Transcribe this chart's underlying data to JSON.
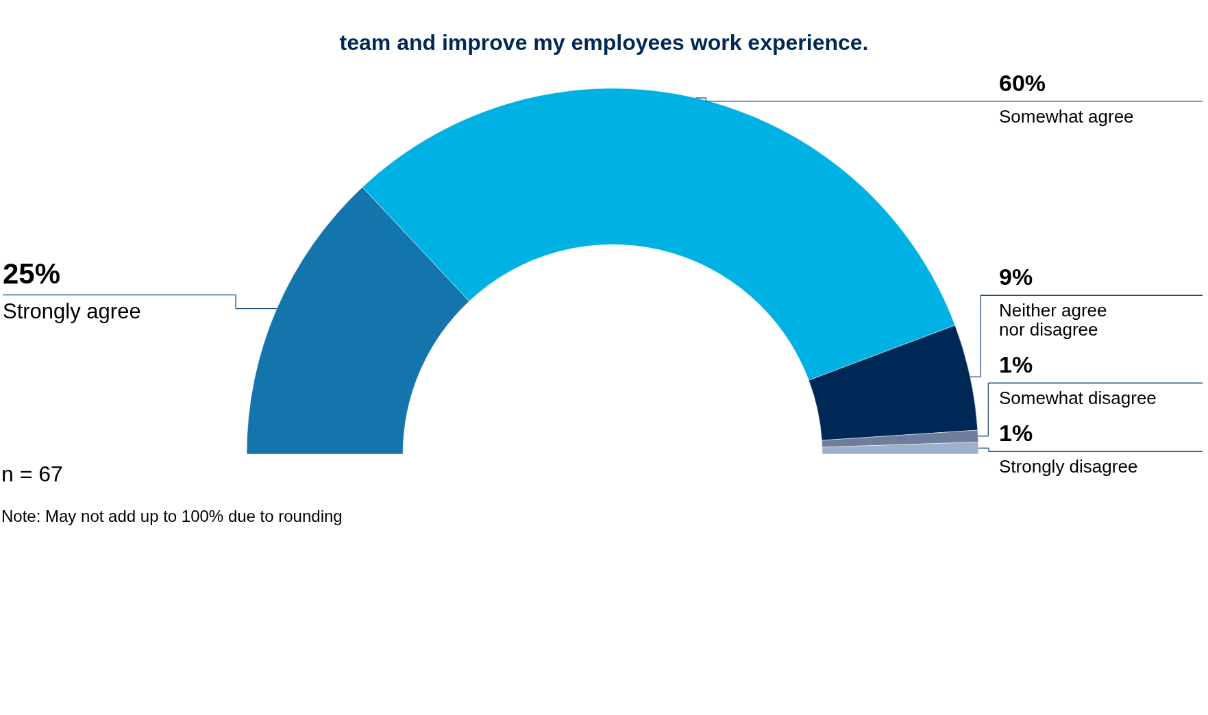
{
  "chart_data": {
    "type": "donut",
    "title": "team and improve my employees work experience.",
    "categories": [
      "Strongly agree",
      "Somewhat agree",
      "Neither agree\nnor disagree",
      "Somewhat disagree",
      "Strongly disagree"
    ],
    "values": [
      25,
      60,
      9,
      1,
      1
    ],
    "value_labels": [
      "25%",
      "60%",
      "9%",
      "1%",
      "1%"
    ],
    "colors": [
      "#1474ac",
      "#00b2e3",
      "#002856",
      "#6e7d9c",
      "#9fb0ca"
    ],
    "annotations": [
      "n = 67",
      "Note: May not add up to 100% due to rounding"
    ],
    "legend": false
  }
}
